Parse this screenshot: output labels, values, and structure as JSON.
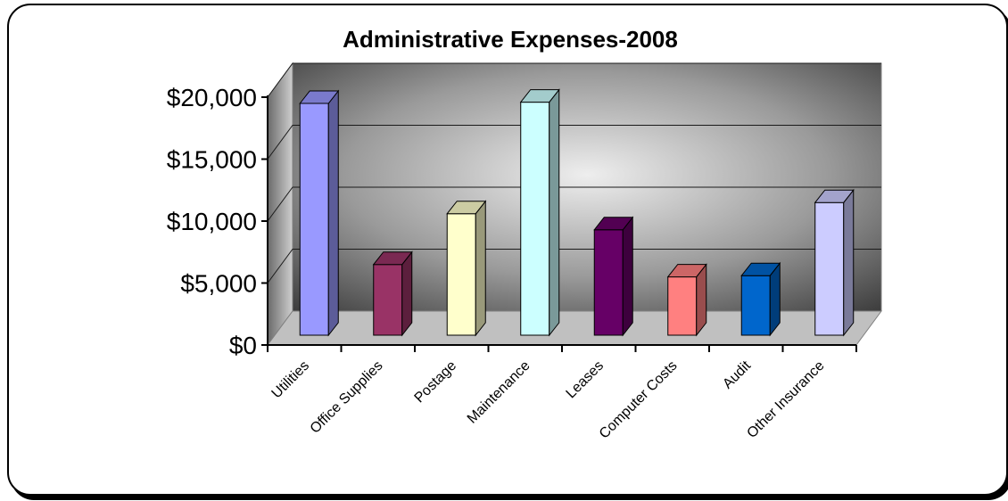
{
  "chart_data": {
    "type": "bar",
    "title": "Administrative Expenses-2008",
    "xlabel": "",
    "ylabel": "",
    "categories": [
      "Utilities",
      "Office Supplies",
      "Postage",
      "Maintenance",
      "Leases",
      "Computer Costs",
      "Audit",
      "Other Insurance"
    ],
    "values": [
      20000,
      7000,
      11100,
      20100,
      9800,
      6000,
      6100,
      12000
    ],
    "ylim": [
      0,
      20000
    ],
    "yticks": [
      0,
      5000,
      10000,
      15000,
      20000
    ],
    "ytick_labels": [
      "$0",
      "$5,000",
      "$10,000",
      "$15,000",
      "$20,000"
    ],
    "gridlines": true,
    "legend": "none",
    "style": "3d-column",
    "colors": {
      "bars": [
        "#9999ff",
        "#993366",
        "#ffffcc",
        "#ccffff",
        "#660066",
        "#ff8080",
        "#0066cc",
        "#ccccff"
      ],
      "floor": "#c0c0c0",
      "wall_light": "#e6e6e6",
      "wall_dark": "#404040"
    }
  }
}
